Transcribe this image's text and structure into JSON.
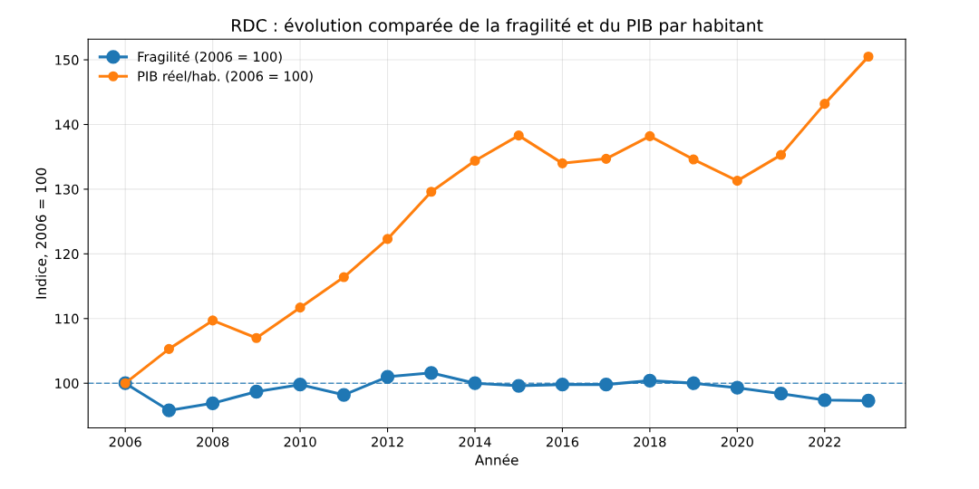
{
  "chart_data": {
    "type": "line",
    "title": "RDC : évolution comparée de la fragilité et du PIB par habitant",
    "xlabel": "Année",
    "ylabel": "Indice, 2006 = 100",
    "x": [
      2006,
      2007,
      2008,
      2009,
      2010,
      2011,
      2012,
      2013,
      2014,
      2015,
      2016,
      2017,
      2018,
      2019,
      2020,
      2021,
      2022,
      2023
    ],
    "series": [
      {
        "name": "Fragilité (2006 = 100)",
        "color": "#1f77b4",
        "values": [
          100,
          95.8,
          96.9,
          98.7,
          99.8,
          98.2,
          101.0,
          101.6,
          100.0,
          99.6,
          99.8,
          99.8,
          100.4,
          100.0,
          99.3,
          98.4,
          97.4,
          97.3
        ]
      },
      {
        "name": "PIB réel/hab. (2006 = 100)",
        "color": "#ff7f0e",
        "values": [
          100,
          105.3,
          109.7,
          107.0,
          111.7,
          116.4,
          122.3,
          129.6,
          134.4,
          138.3,
          134.0,
          134.7,
          138.2,
          134.6,
          131.3,
          135.3,
          143.2,
          150.5
        ]
      }
    ],
    "xlim": [
      2005.15,
      2023.85
    ],
    "xticks": [
      2006,
      2008,
      2010,
      2012,
      2014,
      2016,
      2018,
      2020,
      2022
    ],
    "ylim": [
      93.1,
      153.2
    ],
    "yticks": [
      100,
      110,
      120,
      130,
      140,
      150
    ],
    "ref_lines": [
      {
        "axis": "y",
        "value": 100,
        "color": "#1f77b4",
        "line_style": "dashed"
      }
    ],
    "grid": true,
    "legend": "top left",
    "marker": "circle",
    "line_style": "solid"
  }
}
